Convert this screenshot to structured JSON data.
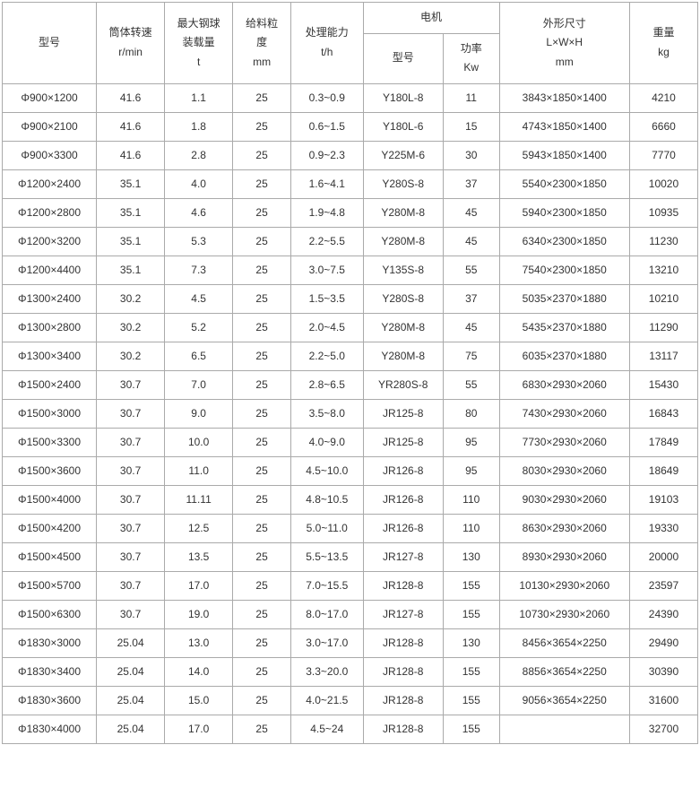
{
  "table": {
    "type": "table",
    "background_color": "#ffffff",
    "border_color": "#aaaaaa",
    "text_color": "#333333",
    "font_size": 12,
    "headers": {
      "model": {
        "line1": "型号"
      },
      "speed": {
        "line1": "筒体转速",
        "line2": "r/min"
      },
      "load": {
        "line1": "最大钢球",
        "line2": "装载量",
        "line3": "t"
      },
      "feed": {
        "line1": "给料粒",
        "line2": "度",
        "line3": "mm"
      },
      "capacity": {
        "line1": "处理能力",
        "line2": "t/h"
      },
      "motor_group": "电机",
      "motor_model": {
        "line1": "型号"
      },
      "motor_power": {
        "line1": "功率",
        "line2": "Kw"
      },
      "dimensions": {
        "line1": "外形尺寸",
        "line2": "L×W×H",
        "line3": "mm"
      },
      "weight": {
        "line1": "重量",
        "line2": "kg"
      }
    },
    "rows": [
      {
        "model": "Φ900×1200",
        "speed": "41.6",
        "load": "1.1",
        "feed": "25",
        "capacity": "0.3~0.9",
        "motor_model": "Y180L-8",
        "motor_power": "11",
        "dimensions": "3843×1850×1400",
        "weight": "4210"
      },
      {
        "model": "Φ900×2100",
        "speed": "41.6",
        "load": "1.8",
        "feed": "25",
        "capacity": "0.6~1.5",
        "motor_model": "Y180L-6",
        "motor_power": "15",
        "dimensions": "4743×1850×1400",
        "weight": "6660"
      },
      {
        "model": "Φ900×3300",
        "speed": "41.6",
        "load": "2.8",
        "feed": "25",
        "capacity": "0.9~2.3",
        "motor_model": "Y225M-6",
        "motor_power": "30",
        "dimensions": "5943×1850×1400",
        "weight": "7770"
      },
      {
        "model": "Φ1200×2400",
        "speed": "35.1",
        "load": "4.0",
        "feed": "25",
        "capacity": "1.6~4.1",
        "motor_model": "Y280S-8",
        "motor_power": "37",
        "dimensions": "5540×2300×1850",
        "weight": "10020"
      },
      {
        "model": "Φ1200×2800",
        "speed": "35.1",
        "load": "4.6",
        "feed": "25",
        "capacity": "1.9~4.8",
        "motor_model": "Y280M-8",
        "motor_power": "45",
        "dimensions": "5940×2300×1850",
        "weight": "10935"
      },
      {
        "model": "Φ1200×3200",
        "speed": "35.1",
        "load": "5.3",
        "feed": "25",
        "capacity": "2.2~5.5",
        "motor_model": "Y280M-8",
        "motor_power": "45",
        "dimensions": "6340×2300×1850",
        "weight": "11230"
      },
      {
        "model": "Φ1200×4400",
        "speed": "35.1",
        "load": "7.3",
        "feed": "25",
        "capacity": "3.0~7.5",
        "motor_model": "Y135S-8",
        "motor_power": "55",
        "dimensions": "7540×2300×1850",
        "weight": "13210"
      },
      {
        "model": "Φ1300×2400",
        "speed": "30.2",
        "load": "4.5",
        "feed": "25",
        "capacity": "1.5~3.5",
        "motor_model": "Y280S-8",
        "motor_power": "37",
        "dimensions": "5035×2370×1880",
        "weight": "10210"
      },
      {
        "model": "Φ1300×2800",
        "speed": "30.2",
        "load": "5.2",
        "feed": "25",
        "capacity": "2.0~4.5",
        "motor_model": "Y280M-8",
        "motor_power": "45",
        "dimensions": "5435×2370×1880",
        "weight": "11290"
      },
      {
        "model": "Φ1300×3400",
        "speed": "30.2",
        "load": "6.5",
        "feed": "25",
        "capacity": "2.2~5.0",
        "motor_model": "Y280M-8",
        "motor_power": "75",
        "dimensions": "6035×2370×1880",
        "weight": "13117"
      },
      {
        "model": "Φ1500×2400",
        "speed": "30.7",
        "load": "7.0",
        "feed": "25",
        "capacity": "2.8~6.5",
        "motor_model": "YR280S-8",
        "motor_power": "55",
        "dimensions": "6830×2930×2060",
        "weight": "15430"
      },
      {
        "model": "Φ1500×3000",
        "speed": "30.7",
        "load": "9.0",
        "feed": "25",
        "capacity": "3.5~8.0",
        "motor_model": "JR125-8",
        "motor_power": "80",
        "dimensions": "7430×2930×2060",
        "weight": "16843"
      },
      {
        "model": "Φ1500×3300",
        "speed": "30.7",
        "load": "10.0",
        "feed": "25",
        "capacity": "4.0~9.0",
        "motor_model": "JR125-8",
        "motor_power": "95",
        "dimensions": "7730×2930×2060",
        "weight": "17849"
      },
      {
        "model": "Φ1500×3600",
        "speed": "30.7",
        "load": "11.0",
        "feed": "25",
        "capacity": "4.5~10.0",
        "motor_model": "JR126-8",
        "motor_power": "95",
        "dimensions": "8030×2930×2060",
        "weight": "18649"
      },
      {
        "model": "Φ1500×4000",
        "speed": "30.7",
        "load": "11.11",
        "feed": "25",
        "capacity": "4.8~10.5",
        "motor_model": "JR126-8",
        "motor_power": "110",
        "dimensions": "9030×2930×2060",
        "weight": "19103"
      },
      {
        "model": "Φ1500×4200",
        "speed": "30.7",
        "load": "12.5",
        "feed": "25",
        "capacity": "5.0~11.0",
        "motor_model": "JR126-8",
        "motor_power": "110",
        "dimensions": "8630×2930×2060",
        "weight": "19330"
      },
      {
        "model": "Φ1500×4500",
        "speed": "30.7",
        "load": "13.5",
        "feed": "25",
        "capacity": "5.5~13.5",
        "motor_model": "JR127-8",
        "motor_power": "130",
        "dimensions": "8930×2930×2060",
        "weight": "20000"
      },
      {
        "model": "Φ1500×5700",
        "speed": "30.7",
        "load": "17.0",
        "feed": "25",
        "capacity": "7.0~15.5",
        "motor_model": "JR128-8",
        "motor_power": "155",
        "dimensions": "10130×2930×2060",
        "weight": "23597"
      },
      {
        "model": "Φ1500×6300",
        "speed": "30.7",
        "load": "19.0",
        "feed": "25",
        "capacity": "8.0~17.0",
        "motor_model": "JR127-8",
        "motor_power": "155",
        "dimensions": "10730×2930×2060",
        "weight": "24390"
      },
      {
        "model": "Φ1830×3000",
        "speed": "25.04",
        "load": "13.0",
        "feed": "25",
        "capacity": "3.0~17.0",
        "motor_model": "JR128-8",
        "motor_power": "130",
        "dimensions": "8456×3654×2250",
        "weight": "29490"
      },
      {
        "model": "Φ1830×3400",
        "speed": "25.04",
        "load": "14.0",
        "feed": "25",
        "capacity": "3.3~20.0",
        "motor_model": "JR128-8",
        "motor_power": "155",
        "dimensions": "8856×3654×2250",
        "weight": "30390"
      },
      {
        "model": "Φ1830×3600",
        "speed": "25.04",
        "load": "15.0",
        "feed": "25",
        "capacity": "4.0~21.5",
        "motor_model": "JR128-8",
        "motor_power": "155",
        "dimensions": "9056×3654×2250",
        "weight": "31600"
      },
      {
        "model": "Φ1830×4000",
        "speed": "25.04",
        "load": "17.0",
        "feed": "25",
        "capacity": "4.5~24",
        "motor_model": "JR128-8",
        "motor_power": "155",
        "dimensions": "",
        "weight": "32700"
      }
    ]
  }
}
